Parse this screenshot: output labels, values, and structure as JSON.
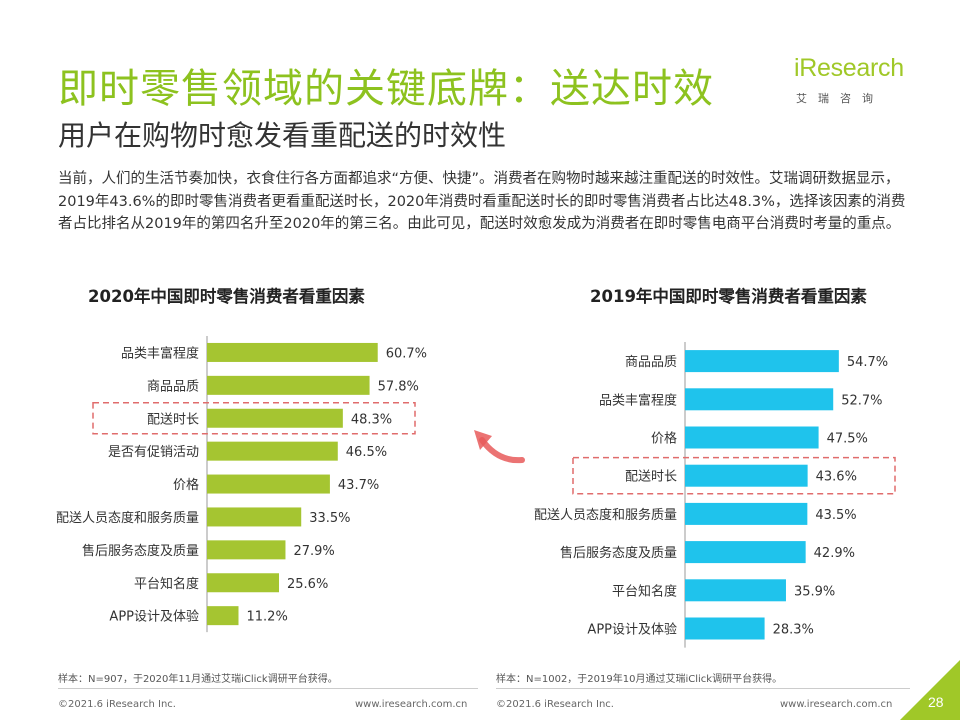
{
  "header": {
    "title": "即时零售领域的关键底牌：送达时效",
    "subtitle": "用户在购物时愈发看重配送的时效性"
  },
  "logo": {
    "word": "iResearch",
    "sub": "艾瑞咨询"
  },
  "intro": "当前，人们的生活节奏加快，衣食住行各方面都追求“方便、快捷”。消费者在购物时越来越注重配送的时效性。艾瑞调研数据显示，2019年43.6%的即时零售消费者更看重配送时长，2020年消费时看重配送时长的即时零售消费者占比达48.3%，选择该因素的消费者占比排名从2019年的第四名升至2020年的第三名。由此可见，配送时效愈发成为消费者在即时零售电商平台消费时考量的重点。",
  "chart_data": [
    {
      "type": "bar",
      "orientation": "horizontal",
      "title": "2020年中国即时零售消费者看重因素",
      "categories": [
        "品类丰富程度",
        "商品品质",
        "配送时长",
        "是否有促销活动",
        "价格",
        "配送人员态度和服务质量",
        "售后服务态度及质量",
        "平台知名度",
        "APP设计及体验"
      ],
      "values": [
        60.7,
        57.8,
        48.3,
        46.5,
        43.7,
        33.5,
        27.9,
        25.6,
        11.2
      ],
      "value_labels": [
        "60.7%",
        "57.8%",
        "48.3%",
        "46.5%",
        "43.7%",
        "33.5%",
        "27.9%",
        "25.6%",
        "11.2%"
      ],
      "color": "#a5c531",
      "highlight": "配送时长",
      "xlim": [
        0,
        80
      ]
    },
    {
      "type": "bar",
      "orientation": "horizontal",
      "title": "2019年中国即时零售消费者看重因素",
      "categories": [
        "商品品质",
        "品类丰富程度",
        "价格",
        "配送时长",
        "配送人员态度和服务质量",
        "售后服务态度及质量",
        "平台知名度",
        "APP设计及体验"
      ],
      "values": [
        54.7,
        52.7,
        47.5,
        43.6,
        43.5,
        42.9,
        35.9,
        28.3
      ],
      "value_labels": [
        "54.7%",
        "52.7%",
        "47.5%",
        "43.6%",
        "43.5%",
        "42.9%",
        "35.9%",
        "28.3%"
      ],
      "color": "#1fc3ec",
      "highlight": "配送时长",
      "xlim": [
        0,
        80
      ]
    }
  ],
  "colors": {
    "accent": "#8dc21f",
    "highlight_box": "#e06c6c",
    "arrow": "#e85a5a"
  },
  "notes": {
    "left": "样本：N=907，于2020年11月通过艾瑞iClick调研平台获得。",
    "right": "样本：N=1002，于2019年10月通过艾瑞iClick调研平台获得。"
  },
  "footer": {
    "copyright_left": "©2021.6 iResearch Inc.",
    "url_left": "www.iresearch.com.cn",
    "copyright_right": "©2021.6 iResearch Inc.",
    "url_right": "www.iresearch.com.cn",
    "page": "28"
  }
}
